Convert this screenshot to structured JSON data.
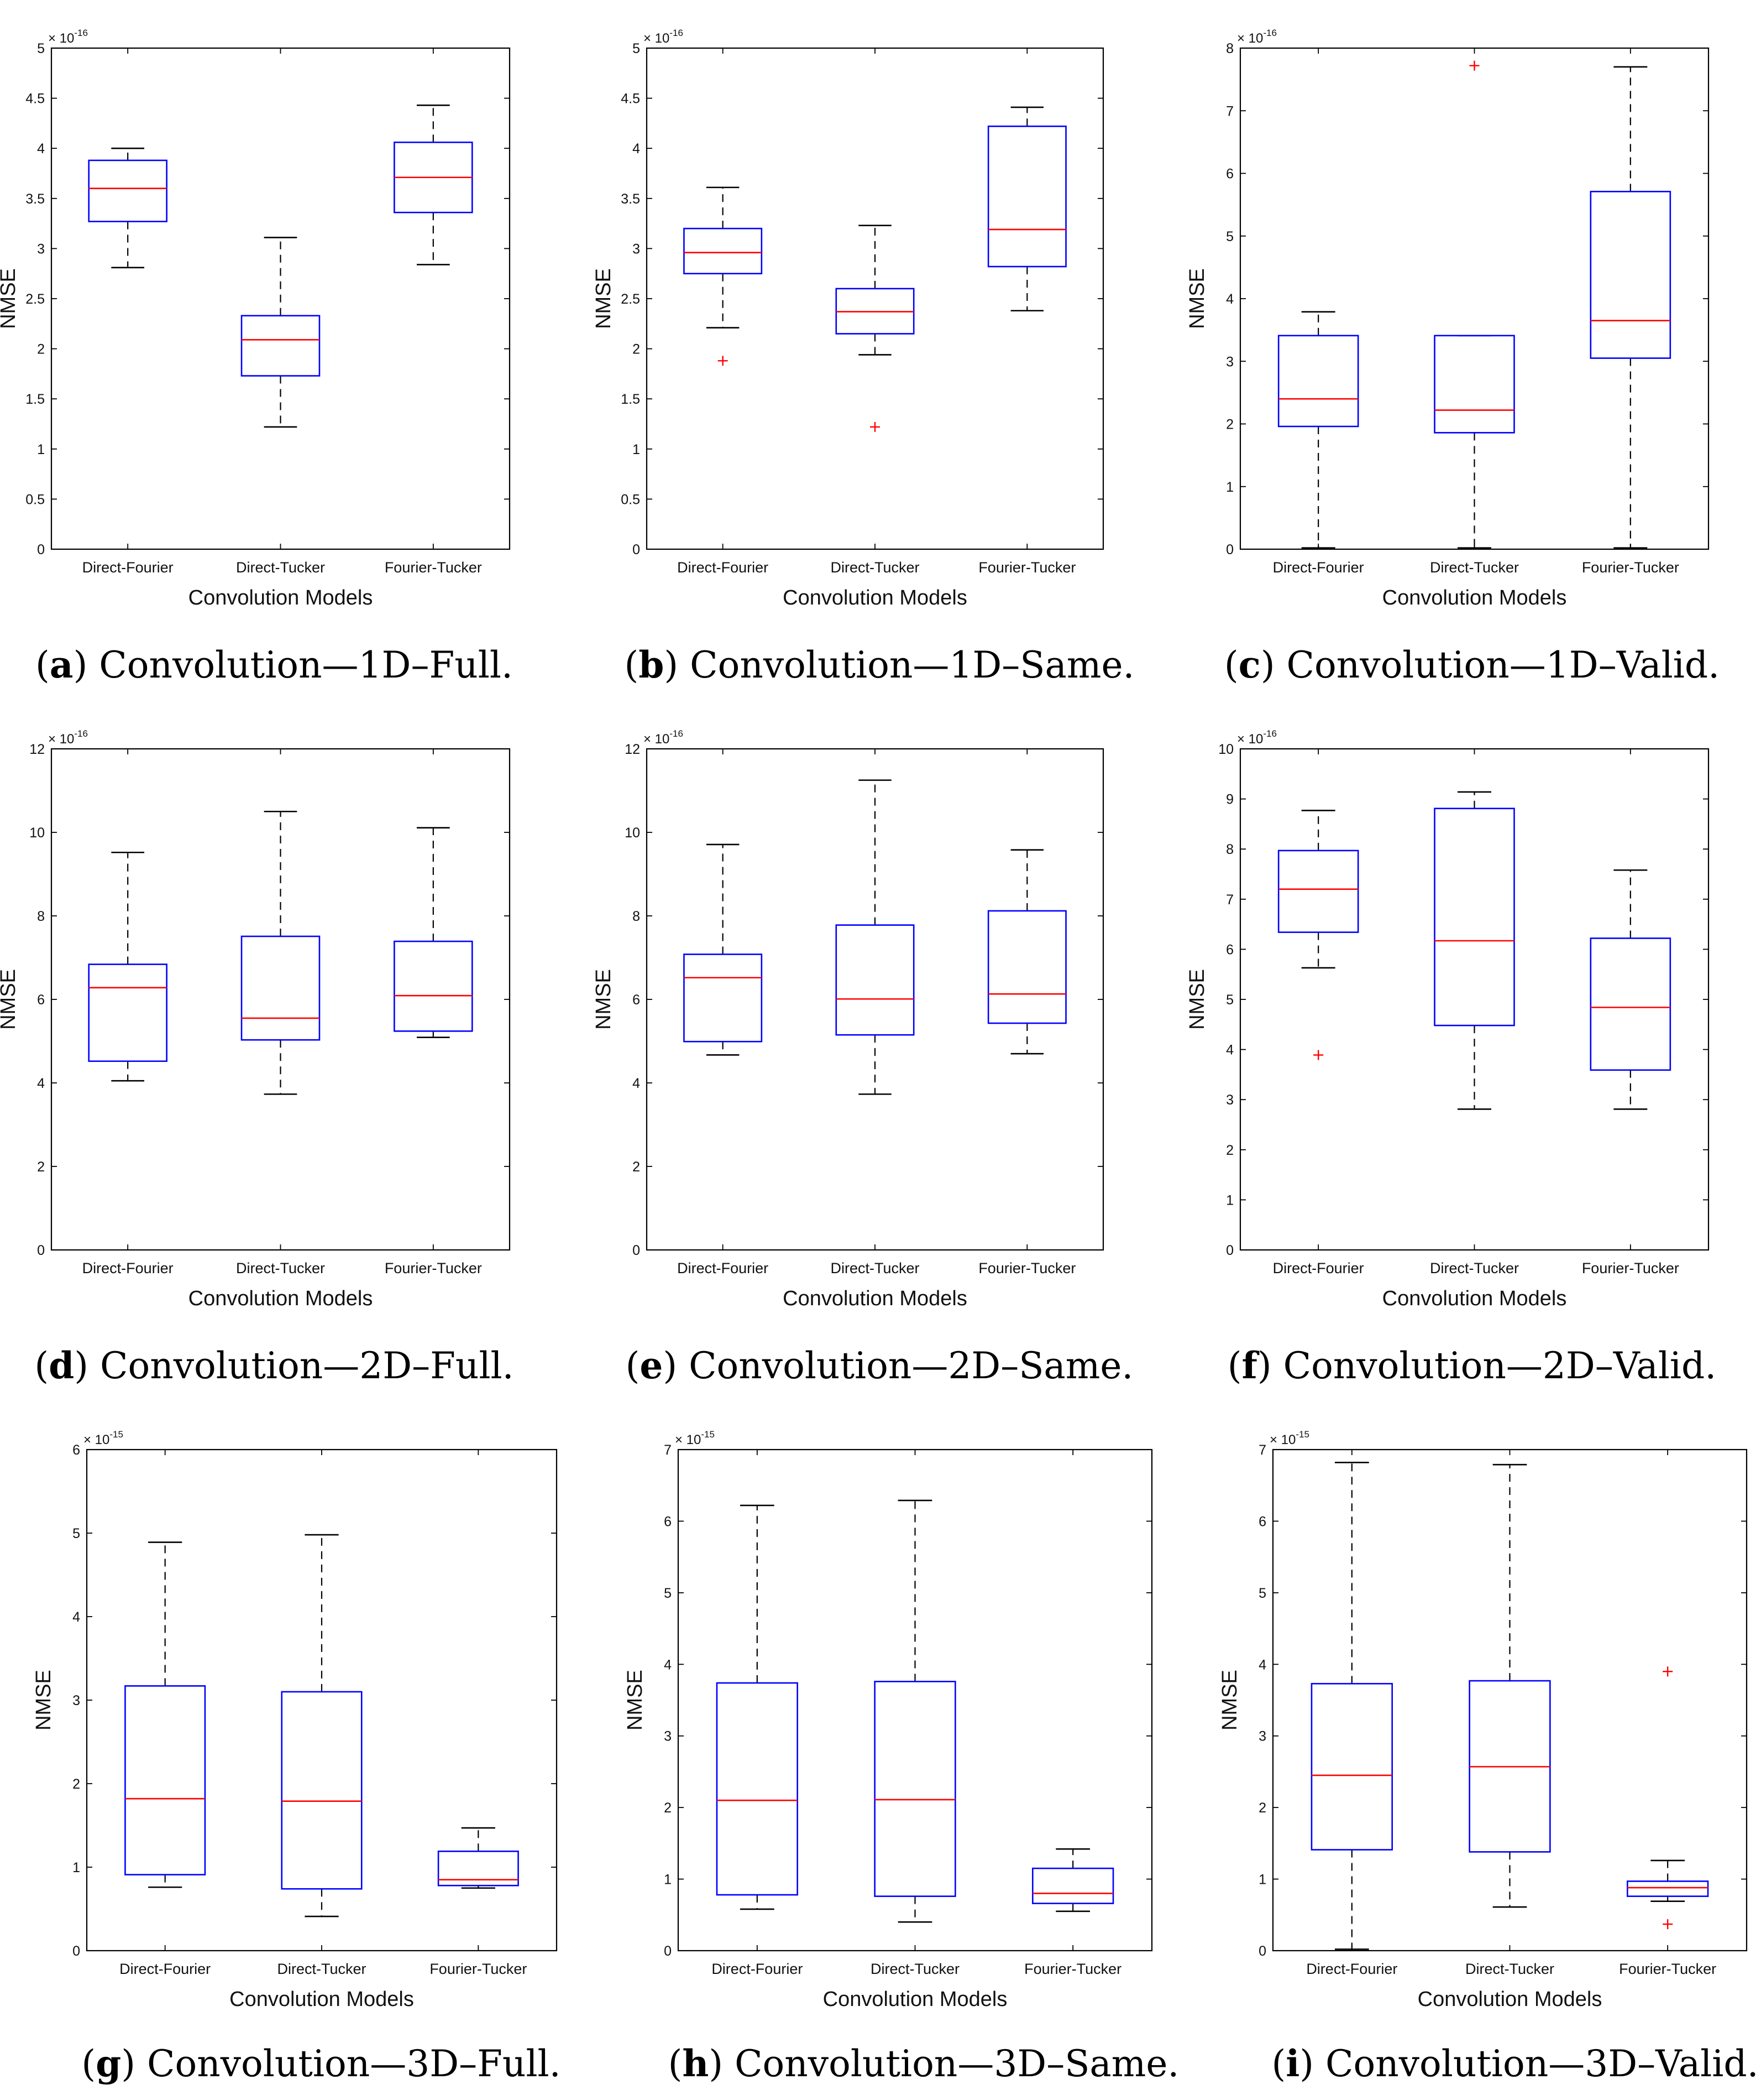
{
  "chart_data": [
    {
      "id": "a",
      "type": "box",
      "caption_letter": "a",
      "caption_text": "Convolution—1D–Full.",
      "xlabel": "Convolution Models",
      "ylabel": "NMSE",
      "exponent_base": "× 10",
      "exponent_power": "-16",
      "ylim": [
        0,
        5
      ],
      "yticks": [
        0,
        0.5,
        1,
        1.5,
        2,
        2.5,
        3,
        3.5,
        4,
        4.5,
        5
      ],
      "ytick_labels": [
        "0",
        "0.5",
        "1",
        "1.5",
        "2",
        "2.5",
        "3",
        "3.5",
        "4",
        "4.5",
        "5"
      ],
      "categories": [
        "Direct-Fourier",
        "Direct-Tucker",
        "Fourier-Tucker"
      ],
      "boxes": [
        {
          "whisker_low": 2.81,
          "q1": 3.27,
          "median": 3.6,
          "q3": 3.88,
          "whisker_high": 4.0,
          "outliers": []
        },
        {
          "whisker_low": 1.22,
          "q1": 1.73,
          "median": 2.09,
          "q3": 2.33,
          "whisker_high": 3.11,
          "outliers": []
        },
        {
          "whisker_low": 2.84,
          "q1": 3.36,
          "median": 3.71,
          "q3": 4.06,
          "whisker_high": 4.43,
          "outliers": []
        }
      ]
    },
    {
      "id": "b",
      "type": "box",
      "caption_letter": "b",
      "caption_text": "Convolution—1D–Same.",
      "xlabel": "Convolution Models",
      "ylabel": "NMSE",
      "exponent_base": "× 10",
      "exponent_power": "-16",
      "ylim": [
        0,
        5
      ],
      "yticks": [
        0,
        0.5,
        1,
        1.5,
        2,
        2.5,
        3,
        3.5,
        4,
        4.5,
        5
      ],
      "ytick_labels": [
        "0",
        "0.5",
        "1",
        "1.5",
        "2",
        "2.5",
        "3",
        "3.5",
        "4",
        "4.5",
        "5"
      ],
      "categories": [
        "Direct-Fourier",
        "Direct-Tucker",
        "Fourier-Tucker"
      ],
      "boxes": [
        {
          "whisker_low": 2.21,
          "q1": 2.75,
          "median": 2.96,
          "q3": 3.2,
          "whisker_high": 3.61,
          "outliers": [
            1.88
          ]
        },
        {
          "whisker_low": 1.94,
          "q1": 2.15,
          "median": 2.37,
          "q3": 2.6,
          "whisker_high": 3.23,
          "outliers": [
            1.22
          ]
        },
        {
          "whisker_low": 2.38,
          "q1": 2.82,
          "median": 3.19,
          "q3": 4.22,
          "whisker_high": 4.41,
          "outliers": []
        }
      ]
    },
    {
      "id": "c",
      "type": "box",
      "caption_letter": "c",
      "caption_text": "Convolution—1D–Valid.",
      "xlabel": "Convolution Models",
      "ylabel": "NMSE",
      "exponent_base": "× 10",
      "exponent_power": "-16",
      "ylim": [
        0,
        8
      ],
      "yticks": [
        0,
        1,
        2,
        3,
        4,
        5,
        6,
        7,
        8
      ],
      "ytick_labels": [
        "0",
        "1",
        "2",
        "3",
        "4",
        "5",
        "6",
        "7",
        "8"
      ],
      "categories": [
        "Direct-Fourier",
        "Direct-Tucker",
        "Fourier-Tucker"
      ],
      "boxes": [
        {
          "whisker_low": 0.02,
          "q1": 1.96,
          "median": 2.4,
          "q3": 3.41,
          "whisker_high": 3.79,
          "outliers": []
        },
        {
          "whisker_low": 0.02,
          "q1": 1.86,
          "median": 2.22,
          "q3": 3.41,
          "whisker_high": 3.41,
          "outliers": [
            7.72
          ]
        },
        {
          "whisker_low": 0.02,
          "q1": 3.05,
          "median": 3.65,
          "q3": 5.71,
          "whisker_high": 7.7,
          "outliers": []
        }
      ]
    },
    {
      "id": "d",
      "type": "box",
      "caption_letter": "d",
      "caption_text": "Convolution—2D–Full.",
      "xlabel": "Convolution Models",
      "ylabel": "NMSE",
      "exponent_base": "× 10",
      "exponent_power": "-16",
      "ylim": [
        0,
        12
      ],
      "yticks": [
        0,
        2,
        4,
        6,
        8,
        10,
        12
      ],
      "ytick_labels": [
        "0",
        "2",
        "4",
        "6",
        "8",
        "10",
        "12"
      ],
      "categories": [
        "Direct-Fourier",
        "Direct-Tucker",
        "Fourier-Tucker"
      ],
      "boxes": [
        {
          "whisker_low": 4.05,
          "q1": 4.52,
          "median": 6.28,
          "q3": 6.84,
          "whisker_high": 9.52,
          "outliers": []
        },
        {
          "whisker_low": 3.73,
          "q1": 5.03,
          "median": 5.55,
          "q3": 7.51,
          "whisker_high": 10.5,
          "outliers": []
        },
        {
          "whisker_low": 5.09,
          "q1": 5.24,
          "median": 6.09,
          "q3": 7.39,
          "whisker_high": 10.11,
          "outliers": []
        }
      ]
    },
    {
      "id": "e",
      "type": "box",
      "caption_letter": "e",
      "caption_text": "Convolution—2D–Same.",
      "xlabel": "Convolution Models",
      "ylabel": "NMSE",
      "exponent_base": "× 10",
      "exponent_power": "-16",
      "ylim": [
        0,
        12
      ],
      "yticks": [
        0,
        2,
        4,
        6,
        8,
        10,
        12
      ],
      "ytick_labels": [
        "0",
        "2",
        "4",
        "6",
        "8",
        "10",
        "12"
      ],
      "categories": [
        "Direct-Fourier",
        "Direct-Tucker",
        "Fourier-Tucker"
      ],
      "boxes": [
        {
          "whisker_low": 4.67,
          "q1": 4.99,
          "median": 6.52,
          "q3": 7.08,
          "whisker_high": 9.71,
          "outliers": []
        },
        {
          "whisker_low": 3.73,
          "q1": 5.15,
          "median": 6.01,
          "q3": 7.78,
          "whisker_high": 11.25,
          "outliers": []
        },
        {
          "whisker_low": 4.7,
          "q1": 5.43,
          "median": 6.13,
          "q3": 8.12,
          "whisker_high": 9.58,
          "outliers": []
        }
      ]
    },
    {
      "id": "f",
      "type": "box",
      "caption_letter": "f",
      "caption_text": "Convolution—2D–Valid.",
      "xlabel": "Convolution Models",
      "ylabel": "NMSE",
      "exponent_base": "× 10",
      "exponent_power": "-16",
      "ylim": [
        0,
        10
      ],
      "yticks": [
        0,
        1,
        2,
        3,
        4,
        5,
        6,
        7,
        8,
        9,
        10
      ],
      "ytick_labels": [
        "0",
        "1",
        "2",
        "3",
        "4",
        "5",
        "6",
        "7",
        "8",
        "9",
        "10"
      ],
      "categories": [
        "Direct-Fourier",
        "Direct-Tucker",
        "Fourier-Tucker"
      ],
      "boxes": [
        {
          "whisker_low": 5.63,
          "q1": 6.34,
          "median": 7.2,
          "q3": 7.97,
          "whisker_high": 8.77,
          "outliers": [
            3.89
          ]
        },
        {
          "whisker_low": 2.81,
          "q1": 4.48,
          "median": 6.17,
          "q3": 8.81,
          "whisker_high": 9.14,
          "outliers": []
        },
        {
          "whisker_low": 2.81,
          "q1": 3.59,
          "median": 4.84,
          "q3": 6.22,
          "whisker_high": 7.58,
          "outliers": []
        }
      ]
    },
    {
      "id": "g",
      "type": "box",
      "caption_letter": "g",
      "caption_text": "Convolution—3D–Full.",
      "xlabel": "Convolution Models",
      "ylabel": "NMSE",
      "exponent_base": "× 10",
      "exponent_power": "-15",
      "ylim": [
        0,
        6
      ],
      "yticks": [
        0,
        1,
        2,
        3,
        4,
        5,
        6
      ],
      "ytick_labels": [
        "0",
        "1",
        "2",
        "3",
        "4",
        "5",
        "6"
      ],
      "categories": [
        "Direct-Fourier",
        "Direct-Tucker",
        "Fourier-Tucker"
      ],
      "boxes": [
        {
          "whisker_low": 0.76,
          "q1": 0.91,
          "median": 1.82,
          "q3": 3.17,
          "whisker_high": 4.89,
          "outliers": []
        },
        {
          "whisker_low": 0.41,
          "q1": 0.74,
          "median": 1.79,
          "q3": 3.1,
          "whisker_high": 4.98,
          "outliers": []
        },
        {
          "whisker_low": 0.75,
          "q1": 0.78,
          "median": 0.85,
          "q3": 1.19,
          "whisker_high": 1.47,
          "outliers": []
        }
      ]
    },
    {
      "id": "h",
      "type": "box",
      "caption_letter": "h",
      "caption_text": "Convolution—3D–Same.",
      "xlabel": "Convolution Models",
      "ylabel": "NMSE",
      "exponent_base": "× 10",
      "exponent_power": "-15",
      "ylim": [
        0,
        7
      ],
      "yticks": [
        0,
        1,
        2,
        3,
        4,
        5,
        6,
        7
      ],
      "ytick_labels": [
        "0",
        "1",
        "2",
        "3",
        "4",
        "5",
        "6",
        "7"
      ],
      "categories": [
        "Direct-Fourier",
        "Direct-Tucker",
        "Fourier-Tucker"
      ],
      "boxes": [
        {
          "whisker_low": 0.58,
          "q1": 0.78,
          "median": 2.1,
          "q3": 3.74,
          "whisker_high": 6.22,
          "outliers": []
        },
        {
          "whisker_low": 0.4,
          "q1": 0.76,
          "median": 2.11,
          "q3": 3.76,
          "whisker_high": 6.29,
          "outliers": []
        },
        {
          "whisker_low": 0.55,
          "q1": 0.66,
          "median": 0.8,
          "q3": 1.15,
          "whisker_high": 1.42,
          "outliers": []
        }
      ]
    },
    {
      "id": "i",
      "type": "box",
      "caption_letter": "i",
      "caption_text": "Convolution—3D–Valid.",
      "xlabel": "Convolution Models",
      "ylabel": "NMSE",
      "exponent_base": "× 10",
      "exponent_power": "-15",
      "ylim": [
        0,
        7
      ],
      "yticks": [
        0,
        1,
        2,
        3,
        4,
        5,
        6,
        7
      ],
      "ytick_labels": [
        "0",
        "1",
        "2",
        "3",
        "4",
        "5",
        "6",
        "7"
      ],
      "categories": [
        "Direct-Fourier",
        "Direct-Tucker",
        "Fourier-Tucker"
      ],
      "boxes": [
        {
          "whisker_low": 0.02,
          "q1": 1.41,
          "median": 2.45,
          "q3": 3.73,
          "whisker_high": 6.82,
          "outliers": []
        },
        {
          "whisker_low": 0.61,
          "q1": 1.38,
          "median": 2.57,
          "q3": 3.77,
          "whisker_high": 6.79,
          "outliers": []
        },
        {
          "whisker_low": 0.69,
          "q1": 0.76,
          "median": 0.88,
          "q3": 0.97,
          "whisker_high": 1.26,
          "outliers": [
            0.37,
            3.9
          ]
        }
      ]
    }
  ],
  "colors": {
    "box": "#0000ff",
    "median": "#ff0000",
    "whisker": "#000000",
    "outlier": "#ff0000",
    "frame": "#000000"
  }
}
